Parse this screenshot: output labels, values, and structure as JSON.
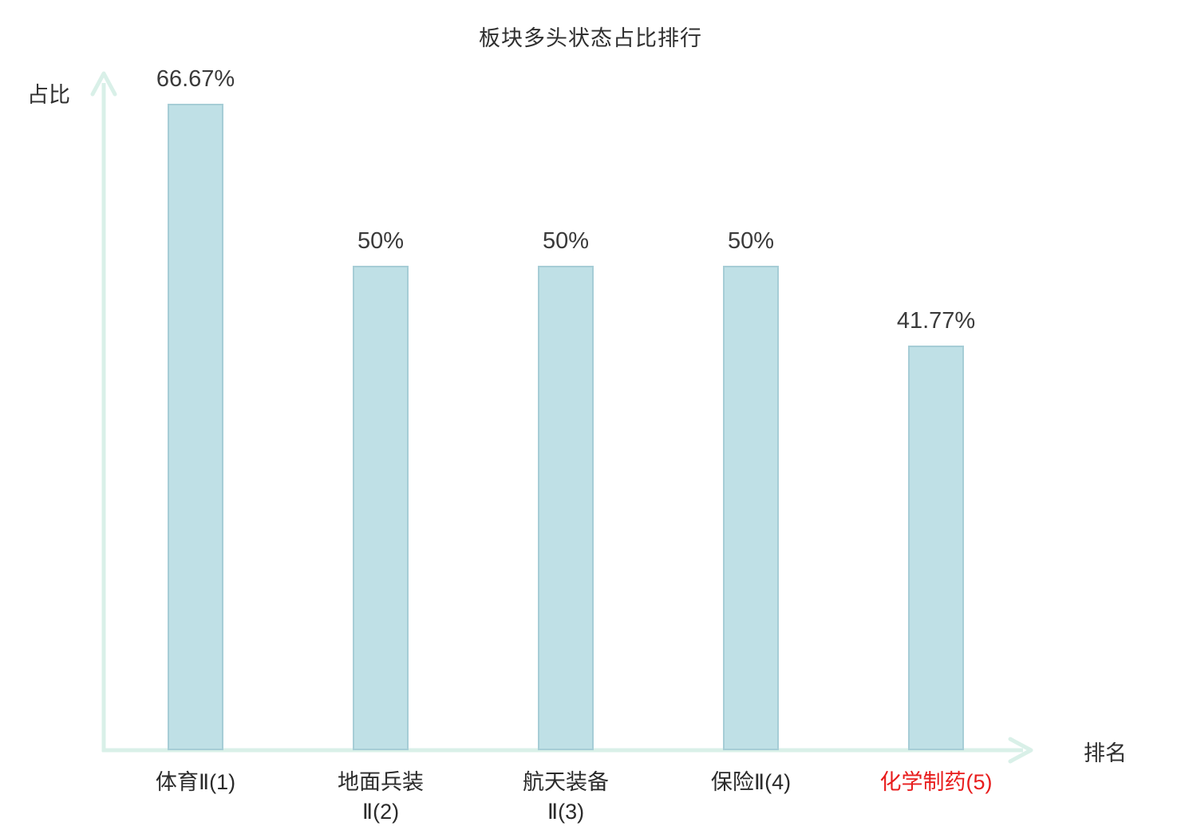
{
  "title": "板块多头状态占比排行",
  "axes": {
    "y_label": "占比",
    "x_label": "排名"
  },
  "chart_data": {
    "type": "bar",
    "title": "板块多头状态占比排行",
    "xlabel": "排名",
    "ylabel": "占比",
    "categories": [
      "体育Ⅱ(1)",
      "地面兵装Ⅱ(2)",
      "航天装备Ⅱ(3)",
      "保险Ⅱ(4)",
      "化学制药(5)"
    ],
    "category_lines": [
      [
        "体育Ⅱ(1)"
      ],
      [
        "地面兵装",
        "Ⅱ(2)"
      ],
      [
        "航天装备",
        "Ⅱ(3)"
      ],
      [
        "保险Ⅱ(4)"
      ],
      [
        "化学制药(5)"
      ]
    ],
    "values": [
      66.67,
      50,
      50,
      50,
      41.77
    ],
    "value_labels": [
      "66.67%",
      "50%",
      "50%",
      "50%",
      "41.77%"
    ],
    "highlight_index": 4,
    "ylim": [
      0,
      70
    ],
    "grid": false,
    "legend_position": "none",
    "colors": {
      "bar_fill": "#bfe0e6",
      "bar_border": "#a6cdd6",
      "axis": "#d9f0e8",
      "text": "#3a3a3a",
      "highlight_text": "#e81c1c"
    }
  }
}
